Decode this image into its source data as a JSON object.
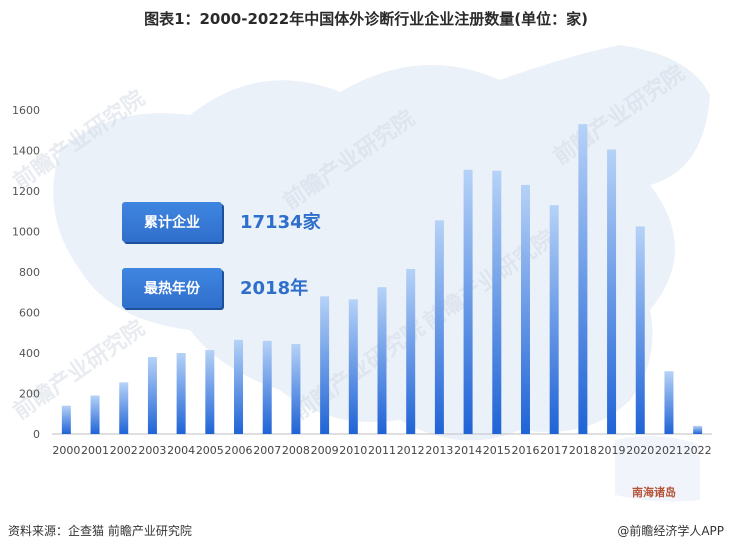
{
  "title": "图表1：2000-2022年中国体外诊断行业企业注册数量(单位：家)",
  "chart_data": {
    "type": "bar",
    "title": "图表1：2000-2022年中国体外诊断行业企业注册数量(单位：家)",
    "xlabel": "",
    "ylabel": "",
    "ylim": [
      0,
      1600
    ],
    "yticks": [
      0,
      200,
      400,
      600,
      800,
      1000,
      1200,
      1400,
      1600
    ],
    "grid": false,
    "categories": [
      "2000",
      "2001",
      "2002",
      "2003",
      "2004",
      "2005",
      "2006",
      "2007",
      "2008",
      "2009",
      "2010",
      "2011",
      "2012",
      "2013",
      "2014",
      "2015",
      "2016",
      "2017",
      "2018",
      "2019",
      "2020",
      "2021",
      "2022"
    ],
    "values": [
      140,
      190,
      255,
      380,
      400,
      415,
      465,
      460,
      445,
      680,
      665,
      725,
      815,
      1055,
      1305,
      1300,
      1230,
      1130,
      1530,
      1405,
      1025,
      310,
      40
    ],
    "bar_color_top": "#b6d2f7",
    "bar_color_bottom": "#1f63d6"
  },
  "callouts": [
    {
      "label": "累计企业",
      "value": "17134家"
    },
    {
      "label": "最热年份",
      "value": "2018年"
    }
  ],
  "map_label": "南海诸岛",
  "watermark": "前瞻产业研究院",
  "footer": {
    "source": "资料来源：企查猫 前瞻产业研究院",
    "brand": "@前瞻经济学人APP"
  }
}
